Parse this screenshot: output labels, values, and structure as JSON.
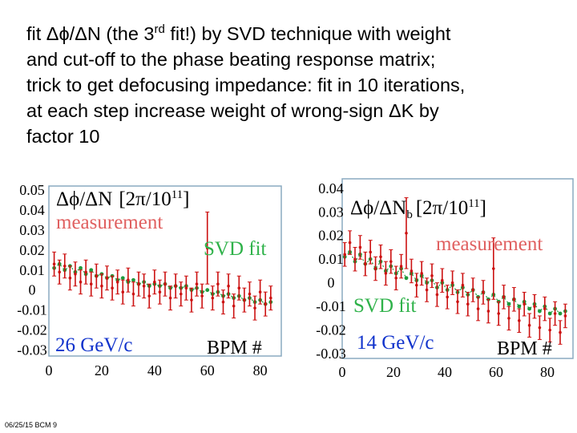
{
  "slide": {
    "title_lines": [
      "fit Δϕ/ΔN (the 3",
      "rd",
      " fit!) by SVD technique with weight",
      "and cut-off to the phase beating response matrix;",
      "trick to get defocusing impedance: fit in 10 iterations,",
      "at each step increase weight of wrong-sign ΔK by",
      "factor 10"
    ],
    "footer": "06/25/15 BCM 9"
  },
  "colors": {
    "measurement": "#cc1111",
    "fit": "#1f9a3c",
    "frame": "#8aaac0",
    "label_blue": "#1133cc"
  },
  "chart_data": [
    {
      "type": "line",
      "ylabel": "Δϕ/ΔN",
      "ylabel_unit": "[2π/10",
      "ylabel_exp": "11",
      "ylabel_close": "]",
      "energy": "26 GeV/c",
      "xlabel": "BPM #",
      "xlim": [
        0,
        88
      ],
      "ylim": [
        -0.033,
        0.052
      ],
      "x_ticks": [
        0,
        20,
        40,
        60,
        80
      ],
      "y_ticks": [
        0.05,
        0.04,
        0.03,
        0.02,
        0.01,
        0,
        -0.01,
        -0.02,
        -0.03
      ],
      "y_tick_labels": [
        "0.05",
        "0.04",
        "0.03",
        "0.02",
        "0.01",
        "0",
        "-0.01",
        "-0.02",
        "-0.03"
      ],
      "series": [
        {
          "name": "measurement",
          "label": "measurement",
          "x": [
            2,
            4,
            6,
            8,
            10,
            12,
            14,
            16,
            18,
            20,
            22,
            24,
            26,
            28,
            30,
            32,
            34,
            36,
            38,
            40,
            42,
            44,
            46,
            48,
            50,
            52,
            54,
            56,
            58,
            60,
            62,
            64,
            66,
            68,
            70,
            72,
            74,
            76,
            78,
            80,
            82,
            84
          ],
          "y": [
            0.013,
            0.009,
            0.012,
            0.006,
            0.008,
            0.004,
            0.009,
            0.003,
            0.007,
            0.002,
            0.006,
            0.001,
            0.004,
            -0.001,
            0.005,
            -0.002,
            0.003,
            0.002,
            -0.003,
            0.004,
            -0.001,
            0.003,
            -0.004,
            0.002,
            -0.002,
            0.001,
            -0.005,
            0.003,
            -0.003,
            0.021,
            -0.004,
            0.003,
            -0.006,
            0.002,
            -0.008,
            0.001,
            -0.005,
            -0.002,
            -0.009,
            -0.001,
            -0.007,
            -0.004
          ],
          "err": [
            0.006,
            0.006,
            0.006,
            0.006,
            0.006,
            0.006,
            0.006,
            0.006,
            0.006,
            0.006,
            0.006,
            0.006,
            0.006,
            0.006,
            0.006,
            0.006,
            0.006,
            0.006,
            0.006,
            0.006,
            0.006,
            0.006,
            0.006,
            0.006,
            0.006,
            0.006,
            0.006,
            0.006,
            0.006,
            0.018,
            0.006,
            0.006,
            0.006,
            0.006,
            0.006,
            0.006,
            0.006,
            0.006,
            0.006,
            0.006,
            0.006,
            0.006
          ]
        },
        {
          "name": "SVD fit",
          "label": "SVD fit",
          "x": [
            2,
            4,
            6,
            8,
            10,
            12,
            14,
            16,
            18,
            20,
            22,
            24,
            26,
            28,
            30,
            32,
            34,
            36,
            38,
            40,
            42,
            44,
            46,
            48,
            50,
            52,
            54,
            56,
            58,
            60,
            62,
            64,
            66,
            68,
            70,
            72,
            74,
            76,
            78,
            80,
            82,
            84
          ],
          "y": [
            0.011,
            0.013,
            0.01,
            0.012,
            0.009,
            0.011,
            0.008,
            0.01,
            0.007,
            0.008,
            0.006,
            0.007,
            0.005,
            0.006,
            0.004,
            0.005,
            0.003,
            0.004,
            0.002,
            0.003,
            0.002,
            0.003,
            0.001,
            0.002,
            0.001,
            0.002,
            0.0,
            0.001,
            -0.001,
            0.0,
            -0.002,
            -0.001,
            -0.003,
            -0.002,
            -0.004,
            -0.003,
            -0.005,
            -0.004,
            -0.006,
            -0.005,
            -0.007,
            -0.006
          ]
        }
      ]
    },
    {
      "type": "line",
      "ylabel": "Δϕ/ΔN",
      "ylabel_sub": "b",
      "ylabel_unit": "[2π/10",
      "ylabel_exp": "11",
      "ylabel_close": "]",
      "energy": "14 GeV/c",
      "xlabel": "BPM #",
      "xlim": [
        0,
        90
      ],
      "ylim": [
        -0.032,
        0.044
      ],
      "x_ticks": [
        0,
        20,
        40,
        60,
        80
      ],
      "y_ticks": [
        0.04,
        0.03,
        0.02,
        0.01,
        0,
        -0.01,
        -0.02,
        -0.03
      ],
      "y_tick_labels": [
        "0.04",
        "0.03",
        "0.02",
        "0.01",
        "0",
        "-0.01",
        "-0.02",
        "-0.03"
      ],
      "series": [
        {
          "name": "measurement",
          "label": "measurement",
          "x": [
            1,
            3,
            5,
            7,
            9,
            11,
            13,
            15,
            17,
            19,
            21,
            23,
            25,
            27,
            29,
            31,
            33,
            35,
            37,
            39,
            41,
            43,
            45,
            47,
            49,
            51,
            53,
            55,
            57,
            59,
            61,
            63,
            65,
            67,
            69,
            71,
            73,
            75,
            77,
            79,
            81,
            83,
            85,
            87
          ],
          "y": [
            0.012,
            0.017,
            0.01,
            0.015,
            0.008,
            0.013,
            0.006,
            0.011,
            0.004,
            0.009,
            0.002,
            0.007,
            0.021,
            0.005,
            -0.001,
            0.004,
            -0.003,
            0.003,
            -0.005,
            0.001,
            -0.006,
            0.0,
            -0.008,
            -0.001,
            -0.009,
            -0.003,
            -0.011,
            -0.004,
            -0.012,
            0.006,
            -0.013,
            -0.006,
            -0.015,
            -0.007,
            -0.016,
            -0.009,
            -0.018,
            -0.01,
            -0.019,
            -0.011,
            -0.02,
            -0.013,
            -0.021,
            -0.014
          ],
          "err": [
            0.005,
            0.005,
            0.005,
            0.005,
            0.005,
            0.005,
            0.005,
            0.005,
            0.005,
            0.005,
            0.005,
            0.005,
            0.015,
            0.005,
            0.005,
            0.005,
            0.005,
            0.005,
            0.005,
            0.005,
            0.005,
            0.005,
            0.005,
            0.005,
            0.005,
            0.005,
            0.005,
            0.005,
            0.005,
            0.013,
            0.005,
            0.005,
            0.005,
            0.005,
            0.005,
            0.005,
            0.005,
            0.005,
            0.005,
            0.005,
            0.005,
            0.005,
            0.005,
            0.005
          ]
        },
        {
          "name": "SVD fit",
          "label": "SVD fit",
          "x": [
            1,
            3,
            5,
            7,
            9,
            11,
            13,
            15,
            17,
            19,
            21,
            23,
            25,
            27,
            29,
            31,
            33,
            35,
            37,
            39,
            41,
            43,
            45,
            47,
            49,
            51,
            53,
            55,
            57,
            59,
            61,
            63,
            65,
            67,
            69,
            71,
            73,
            75,
            77,
            79,
            81,
            83,
            85,
            87
          ],
          "y": [
            0.011,
            0.013,
            0.009,
            0.012,
            0.008,
            0.01,
            0.006,
            0.009,
            0.005,
            0.007,
            0.004,
            0.006,
            0.002,
            0.004,
            0.001,
            0.003,
            0.0,
            0.001,
            -0.002,
            0.0,
            -0.003,
            -0.001,
            -0.004,
            -0.002,
            -0.005,
            -0.003,
            -0.006,
            -0.004,
            -0.007,
            -0.005,
            -0.008,
            -0.006,
            -0.009,
            -0.007,
            -0.01,
            -0.008,
            -0.011,
            -0.009,
            -0.012,
            -0.01,
            -0.013,
            -0.011,
            -0.013,
            -0.012
          ]
        }
      ]
    }
  ]
}
